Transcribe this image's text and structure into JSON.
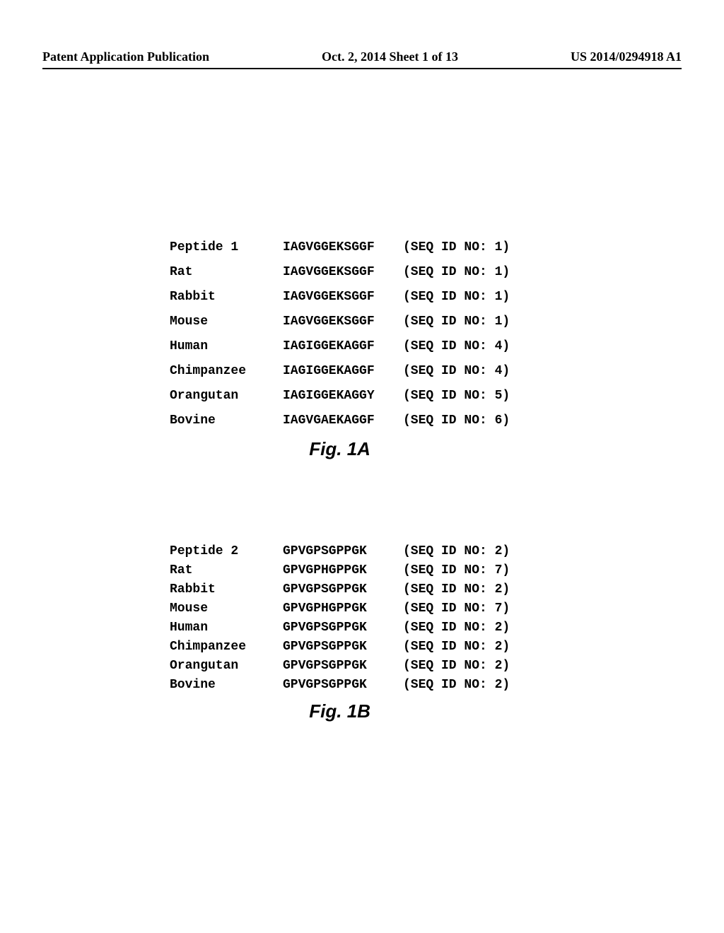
{
  "header": {
    "left": "Patent Application Publication",
    "center": "Oct. 2, 2014  Sheet 1 of 13",
    "right": "US 2014/0294918 A1"
  },
  "figure_a": {
    "label": "Fig. 1A",
    "rows": [
      {
        "name": "Peptide 1",
        "sequence": "IAGVGGEKSGGF",
        "seq_id": "(SEQ ID NO: 1)"
      },
      {
        "name": "Rat",
        "sequence": "IAGVGGEKSGGF",
        "seq_id": "(SEQ ID NO: 1)"
      },
      {
        "name": "Rabbit",
        "sequence": "IAGVGGEKSGGF",
        "seq_id": "(SEQ ID NO: 1)"
      },
      {
        "name": "Mouse",
        "sequence": "IAGVGGEKSGGF",
        "seq_id": "(SEQ ID NO: 1)"
      },
      {
        "name": "Human",
        "sequence": "IAGIGGEKAGGF",
        "seq_id": "(SEQ ID NO: 4)"
      },
      {
        "name": "Chimpanzee",
        "sequence": "IAGIGGEKAGGF",
        "seq_id": "(SEQ ID NO: 4)"
      },
      {
        "name": "Orangutan",
        "sequence": "IAGIGGEKAGGY",
        "seq_id": "(SEQ ID NO: 5)"
      },
      {
        "name": "Bovine",
        "sequence": "IAGVGAEKAGGF",
        "seq_id": "(SEQ ID NO: 6)"
      }
    ]
  },
  "figure_b": {
    "label": "Fig. 1B",
    "rows": [
      {
        "name": "Peptide 2",
        "sequence": "GPVGPSGPPGK",
        "seq_id": "(SEQ ID NO: 2)"
      },
      {
        "name": "Rat",
        "sequence": "GPVGPHGPPGK",
        "seq_id": "(SEQ ID NO: 7)"
      },
      {
        "name": "Rabbit",
        "sequence": "GPVGPSGPPGK",
        "seq_id": "(SEQ ID NO: 2)"
      },
      {
        "name": "Mouse",
        "sequence": "GPVGPHGPPGK",
        "seq_id": "(SEQ ID NO: 7)"
      },
      {
        "name": "Human",
        "sequence": "GPVGPSGPPGK",
        "seq_id": "(SEQ ID NO: 2)"
      },
      {
        "name": "Chimpanzee",
        "sequence": "GPVGPSGPPGK",
        "seq_id": "(SEQ ID NO: 2)"
      },
      {
        "name": "Orangutan",
        "sequence": "GPVGPSGPPGK",
        "seq_id": "(SEQ ID NO: 2)"
      },
      {
        "name": "Bovine",
        "sequence": "GPVGPSGPPGK",
        "seq_id": "(SEQ ID NO: 2)"
      }
    ]
  }
}
